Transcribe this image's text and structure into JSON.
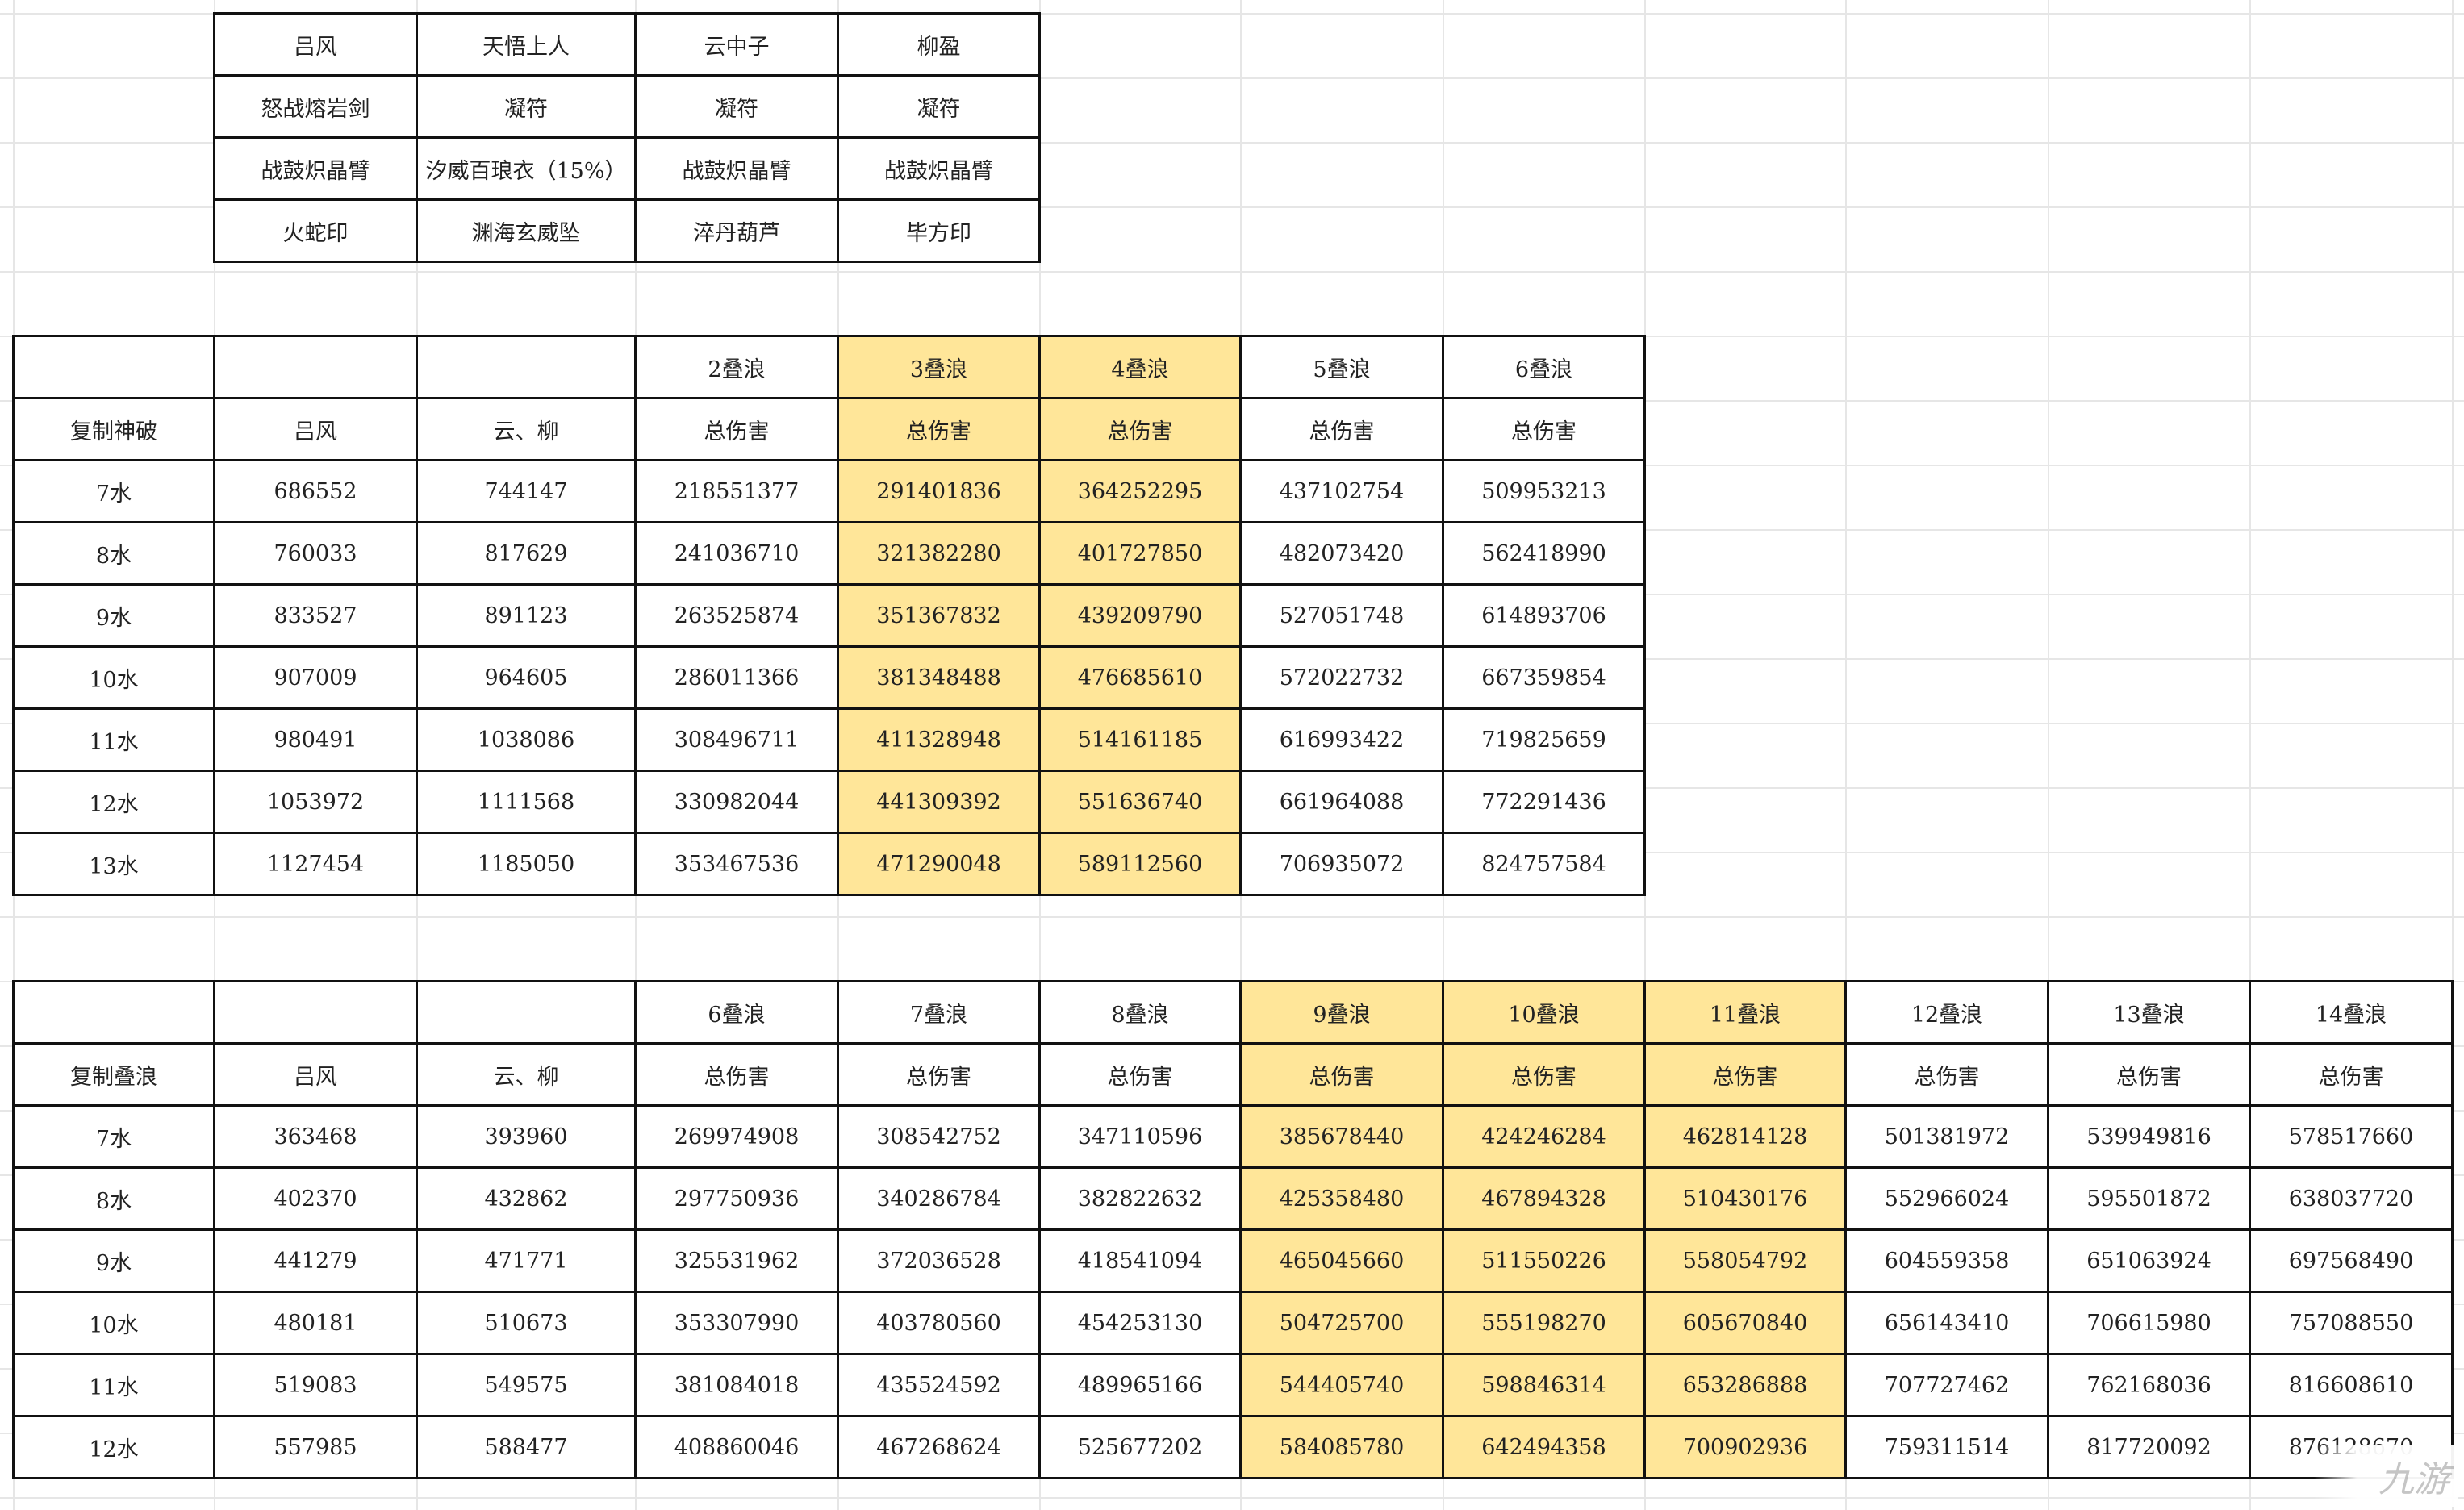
{
  "colors": {
    "highlight": "#ffe699",
    "border": "#111111",
    "gridline": "#e6e6e6"
  },
  "equipment_table": {
    "rows": [
      [
        "吕风",
        "天悟上人",
        "云中子",
        "柳盈"
      ],
      [
        "怒战熔岩剑",
        "凝符",
        "凝符",
        "凝符"
      ],
      [
        "战鼓炽晶臂",
        "汐威百琅衣（15%）",
        "战鼓炽晶臂",
        "战鼓炽晶臂"
      ],
      [
        "火蛇印",
        "渊海玄威坠",
        "淬丹葫芦",
        "毕方印"
      ]
    ]
  },
  "shenpo_table": {
    "highlight_columns": [
      4,
      5
    ],
    "header_row1": [
      "",
      "",
      "",
      "2叠浪",
      "3叠浪",
      "4叠浪",
      "5叠浪",
      "6叠浪"
    ],
    "header_row2": [
      "复制神破",
      "吕风",
      "云、柳",
      "总伤害",
      "总伤害",
      "总伤害",
      "总伤害",
      "总伤害"
    ],
    "rows": [
      [
        "7水",
        "686552",
        "744147",
        "218551377",
        "291401836",
        "364252295",
        "437102754",
        "509953213"
      ],
      [
        "8水",
        "760033",
        "817629",
        "241036710",
        "321382280",
        "401727850",
        "482073420",
        "562418990"
      ],
      [
        "9水",
        "833527",
        "891123",
        "263525874",
        "351367832",
        "439209790",
        "527051748",
        "614893706"
      ],
      [
        "10水",
        "907009",
        "964605",
        "286011366",
        "381348488",
        "476685610",
        "572022732",
        "667359854"
      ],
      [
        "11水",
        "980491",
        "1038086",
        "308496711",
        "411328948",
        "514161185",
        "616993422",
        "719825659"
      ],
      [
        "12水",
        "1053972",
        "1111568",
        "330982044",
        "441309392",
        "551636740",
        "661964088",
        "772291436"
      ],
      [
        "13水",
        "1127454",
        "1185050",
        "353467536",
        "471290048",
        "589112560",
        "706935072",
        "824757584"
      ]
    ]
  },
  "dielang_table": {
    "highlight_columns": [
      6,
      7,
      8
    ],
    "header_row1": [
      "",
      "",
      "",
      "6叠浪",
      "7叠浪",
      "8叠浪",
      "9叠浪",
      "10叠浪",
      "11叠浪",
      "12叠浪",
      "13叠浪",
      "14叠浪"
    ],
    "header_row2": [
      "复制叠浪",
      "吕风",
      "云、柳",
      "总伤害",
      "总伤害",
      "总伤害",
      "总伤害",
      "总伤害",
      "总伤害",
      "总伤害",
      "总伤害",
      "总伤害"
    ],
    "rows": [
      [
        "7水",
        "363468",
        "393960",
        "269974908",
        "308542752",
        "347110596",
        "385678440",
        "424246284",
        "462814128",
        "501381972",
        "539949816",
        "578517660"
      ],
      [
        "8水",
        "402370",
        "432862",
        "297750936",
        "340286784",
        "382822632",
        "425358480",
        "467894328",
        "510430176",
        "552966024",
        "595501872",
        "638037720"
      ],
      [
        "9水",
        "441279",
        "471771",
        "325531962",
        "372036528",
        "418541094",
        "465045660",
        "511550226",
        "558054792",
        "604559358",
        "651063924",
        "697568490"
      ],
      [
        "10水",
        "480181",
        "510673",
        "353307990",
        "403780560",
        "454253130",
        "504725700",
        "555198270",
        "605670840",
        "656143410",
        "706615980",
        "757088550"
      ],
      [
        "11水",
        "519083",
        "549575",
        "381084018",
        "435524592",
        "489965166",
        "544405740",
        "598846314",
        "653286888",
        "707727462",
        "762168036",
        "816608610"
      ],
      [
        "12水",
        "557985",
        "588477",
        "408860046",
        "467268624",
        "525677202",
        "584085780",
        "642494358",
        "700902936",
        "759311514",
        "817720092",
        "876128670"
      ]
    ]
  },
  "watermark": "九游"
}
